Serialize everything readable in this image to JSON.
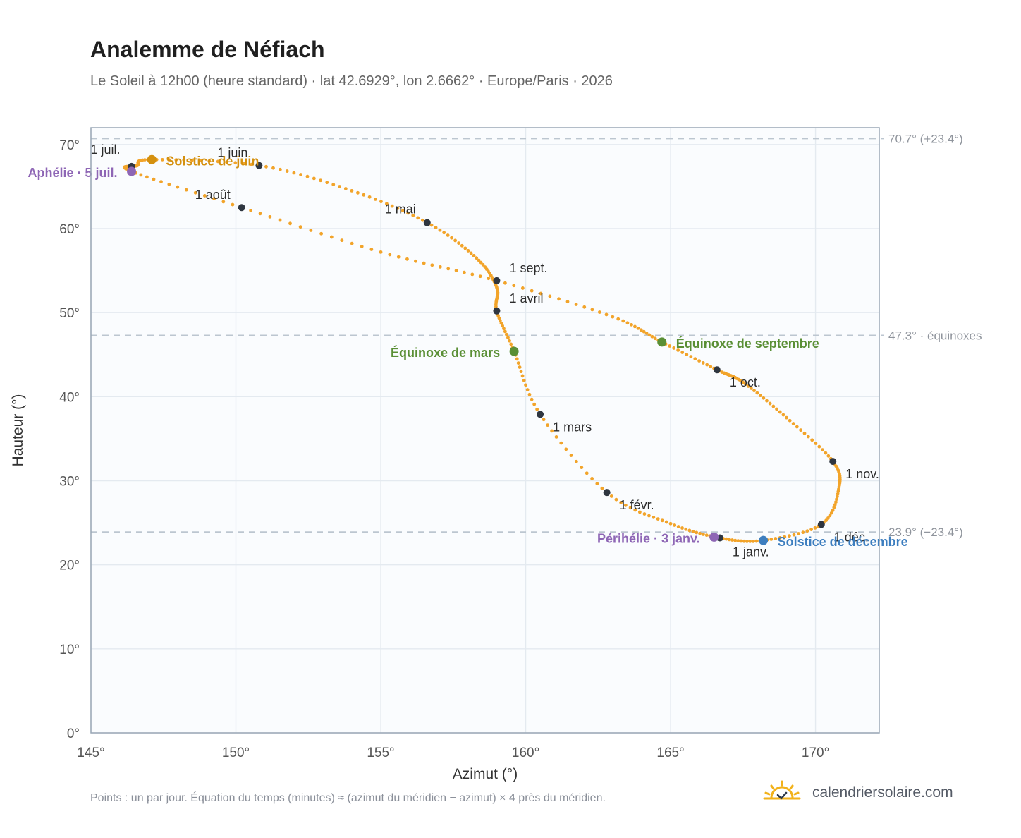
{
  "header": {
    "title": "Analemme de Néfiach",
    "subtitle": "Le Soleil à 12h00 (heure standard) · lat 42.6929°, lon 2.6662° · Europe/Paris · 2026"
  },
  "footer": {
    "note": "Points : un par jour. Équation du temps (minutes) ≈ (azimut du méridien − azimut) × 4 près du méridien.",
    "brand": "calendriersolaire.com",
    "brand_icon": "sun-logo-icon"
  },
  "colors": {
    "curve": "#f2a42a",
    "month_dot": "#2f3640",
    "june_solstice": "#d4900f",
    "december_solstice": "#3d7ebf",
    "equinox": "#5a8f35",
    "apsis": "#8e66b5",
    "reference_line": "#bcc6d0",
    "frame": "#9aa7b6",
    "plot_bg": "#fafcfe",
    "grid": "#e4eaf0"
  },
  "chart_data": {
    "type": "scatter",
    "xlabel": "Azimut (°)",
    "ylabel": "Hauteur (°)",
    "xlim": [
      145,
      172.2
    ],
    "ylim": [
      0,
      72
    ],
    "x_ticks": [
      145,
      150,
      155,
      160,
      165,
      170
    ],
    "x_tick_labels": [
      "145°",
      "150°",
      "155°",
      "160°",
      "165°",
      "170°"
    ],
    "y_ticks": [
      0,
      10,
      20,
      30,
      40,
      50,
      60,
      70
    ],
    "y_tick_labels": [
      "0°",
      "10°",
      "20°",
      "30°",
      "40°",
      "50°",
      "60°",
      "70°"
    ],
    "grid": true,
    "series_note": "un point par jour",
    "path_anchors": [
      [
        166.7,
        23.2
      ],
      [
        168.2,
        22.9
      ],
      [
        170.2,
        24.8
      ],
      [
        170.8,
        29.0
      ],
      [
        170.6,
        32.3
      ],
      [
        169.0,
        37.5
      ],
      [
        167.5,
        41.7
      ],
      [
        166.6,
        43.2
      ],
      [
        164.7,
        46.5
      ],
      [
        163.0,
        49.5
      ],
      [
        159.0,
        53.8
      ],
      [
        155.0,
        57.2
      ],
      [
        150.2,
        62.5
      ],
      [
        146.4,
        66.8
      ],
      [
        146.6,
        67.5
      ],
      [
        147.1,
        68.2
      ],
      [
        150.8,
        67.5
      ],
      [
        154.0,
        64.5
      ],
      [
        156.6,
        60.7
      ],
      [
        158.3,
        56.5
      ],
      [
        159.0,
        53.0
      ],
      [
        159.0,
        50.2
      ],
      [
        159.6,
        45.4
      ],
      [
        160.5,
        37.9
      ],
      [
        162.8,
        28.6
      ],
      [
        165.0,
        24.9
      ],
      [
        166.7,
        23.2
      ]
    ],
    "reference_lines": [
      {
        "y": 70.7,
        "label": "70.7° (+23.4°)"
      },
      {
        "y": 47.3,
        "label": "47.3° · équinoxes"
      },
      {
        "y": 23.9,
        "label": "23.9° (−23.4°)"
      }
    ],
    "month_markers": [
      {
        "label": "1 janv.",
        "x": 166.7,
        "y": 23.2
      },
      {
        "label": "1 févr.",
        "x": 162.8,
        "y": 28.6
      },
      {
        "label": "1 mars",
        "x": 160.5,
        "y": 37.9
      },
      {
        "label": "1 avril",
        "x": 159.0,
        "y": 50.2
      },
      {
        "label": "1 mai",
        "x": 156.6,
        "y": 60.7
      },
      {
        "label": "1 juin",
        "x": 150.8,
        "y": 67.5
      },
      {
        "label": "1 juil.",
        "x": 146.4,
        "y": 67.4
      },
      {
        "label": "1 août",
        "x": 150.2,
        "y": 62.5
      },
      {
        "label": "1 sept.",
        "x": 159.0,
        "y": 53.8
      },
      {
        "label": "1 oct.",
        "x": 166.6,
        "y": 43.2
      },
      {
        "label": "1 nov.",
        "x": 170.6,
        "y": 32.3
      },
      {
        "label": "1 déc.",
        "x": 170.2,
        "y": 24.8
      }
    ],
    "events": [
      {
        "label": "Solstice de juin",
        "x": 147.1,
        "y": 68.2,
        "kind": "june_solstice"
      },
      {
        "label": "Solstice de décembre",
        "x": 168.2,
        "y": 22.9,
        "kind": "december_solstice"
      },
      {
        "label": "Équinoxe de mars",
        "x": 159.6,
        "y": 45.4,
        "kind": "equinox"
      },
      {
        "label": "Équinoxe de septembre",
        "x": 164.7,
        "y": 46.5,
        "kind": "equinox"
      },
      {
        "label": "Aphélie · 5 juil.",
        "x": 146.4,
        "y": 66.8,
        "kind": "apsis"
      },
      {
        "label": "Périhélie · 3 janv.",
        "x": 166.5,
        "y": 23.3,
        "kind": "apsis"
      }
    ]
  }
}
